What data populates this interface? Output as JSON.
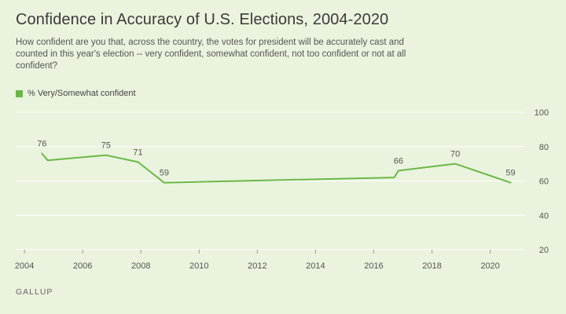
{
  "title": "Confidence in Accuracy of U.S. Elections, 2004-2020",
  "subtitle": "How confident are you that, across the country, the votes for president will be accurately cast and counted in this year's election -- very confident, somewhat confident, not too confident or not at all confident?",
  "source": "GALLUP",
  "colors": {
    "series": "#6ab846",
    "grid": "#ffffff",
    "background": "#eaf3dd"
  },
  "chart_data": {
    "type": "line",
    "title": "Confidence in Accuracy of U.S. Elections, 2004-2020",
    "xlabel": "",
    "ylabel": "",
    "xlim": [
      2003.7,
      2021.2
    ],
    "ylim": [
      20,
      100
    ],
    "x_ticks": [
      "2004",
      "2006",
      "2008",
      "2010",
      "2012",
      "2014",
      "2016",
      "2018",
      "2020"
    ],
    "y_ticks": [
      "100",
      "80",
      "60",
      "40",
      "20"
    ],
    "grid": "horizontal",
    "legend": "top-left",
    "series": [
      {
        "name": "% Very/Somewhat confident",
        "x": [
          2004.6,
          2004.8,
          2006.8,
          2007.9,
          2008.8,
          2016.7,
          2016.85,
          2018.8,
          2020.7
        ],
        "y": [
          76,
          72,
          75,
          71,
          59,
          62,
          66,
          70,
          59
        ]
      }
    ],
    "data_labels": [
      {
        "x": 2004.6,
        "y": 76,
        "text": "76"
      },
      {
        "x": 2006.8,
        "y": 75,
        "text": "75"
      },
      {
        "x": 2007.9,
        "y": 71,
        "text": "71"
      },
      {
        "x": 2008.8,
        "y": 59,
        "text": "59"
      },
      {
        "x": 2016.85,
        "y": 66,
        "text": "66"
      },
      {
        "x": 2018.8,
        "y": 70,
        "text": "70"
      },
      {
        "x": 2020.7,
        "y": 59,
        "text": "59"
      }
    ]
  }
}
